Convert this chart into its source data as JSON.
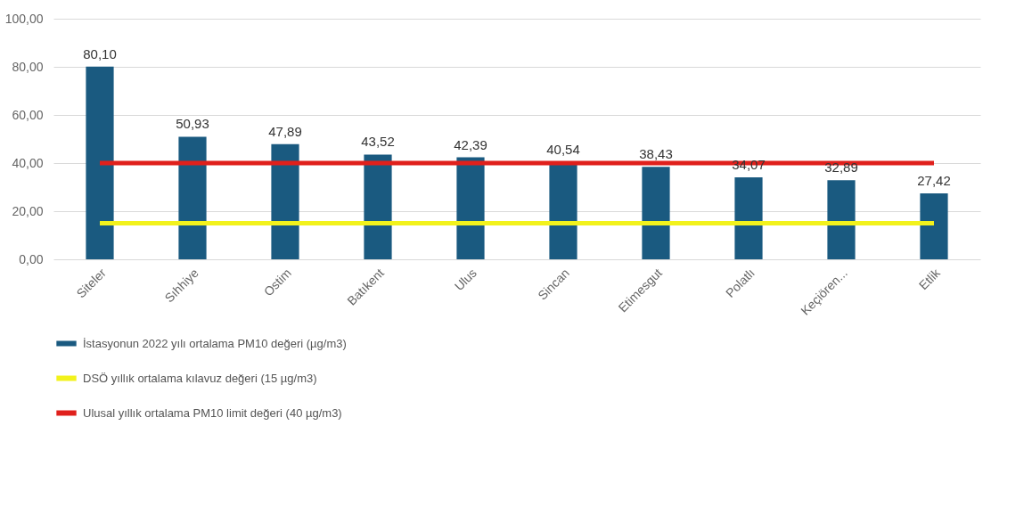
{
  "chart_data": {
    "type": "bar",
    "categories": [
      "Siteler",
      "Sıhhiye",
      "Ostim",
      "Batıkent",
      "Ulus",
      "Sincan",
      "Etimesgut",
      "Polatlı",
      "Keçiören...",
      "Etlik"
    ],
    "series": [
      {
        "name": "İstasyonun 2022 yılı ortalama PM10 değeri (µg/m3)",
        "color": "#1a5a80",
        "values": [
          80.1,
          50.93,
          47.89,
          43.52,
          42.39,
          40.54,
          38.43,
          34.07,
          32.89,
          27.42
        ],
        "value_labels": [
          "80,10",
          "50,93",
          "47,89",
          "43,52",
          "42,39",
          "40,54",
          "38,43",
          "34,07",
          "32,89",
          "27,42"
        ]
      },
      {
        "name": "DSÖ yıllık ortalama kılavuz değeri (15 µg/m3)",
        "type": "line",
        "color": "#f2f21c",
        "values": [
          15,
          15,
          15,
          15,
          15,
          15,
          15,
          15,
          15,
          15
        ]
      },
      {
        "name": "Ulusal yıllık ortalama PM10 limit değeri (40 µg/m3)",
        "type": "line",
        "color": "#e0201c",
        "values": [
          40,
          40,
          40,
          40,
          40,
          40,
          40,
          40,
          40,
          40
        ]
      }
    ],
    "ylim": [
      0,
      100
    ],
    "yticks": [
      {
        "value": 0,
        "label": "0,00"
      },
      {
        "value": 20,
        "label": "20,00"
      },
      {
        "value": 40,
        "label": "40,00"
      },
      {
        "value": 60,
        "label": "60,00"
      },
      {
        "value": 80,
        "label": "80,00"
      },
      {
        "value": 100,
        "label": "100,00"
      }
    ],
    "grid": "y",
    "legend": "bottom"
  }
}
